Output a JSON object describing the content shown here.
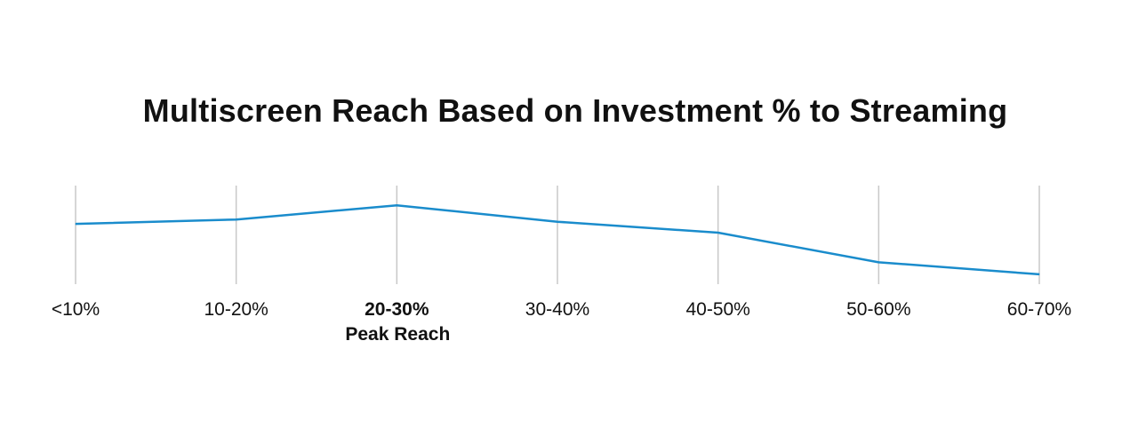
{
  "chart_data": {
    "type": "line",
    "title": "Multiscreen Reach Based on Investment % to Streaming",
    "categories": [
      "<10%",
      "10-20%",
      "20-30%",
      "30-40%",
      "40-50%",
      "50-60%",
      "60-70%"
    ],
    "series": [
      {
        "values": [
          0.35,
          0.39,
          0.52,
          0.37,
          0.27,
          0.0,
          -0.11
        ]
      }
    ],
    "highlight_category": "20-30%",
    "annotation": "Peak Reach",
    "ylim": [
      -0.2,
      0.7
    ],
    "y_axis_visible": false,
    "grid": "vertical",
    "line_color": "#1a8ccc",
    "grid_color": "#c8c8c8",
    "text_color": "#111111"
  }
}
